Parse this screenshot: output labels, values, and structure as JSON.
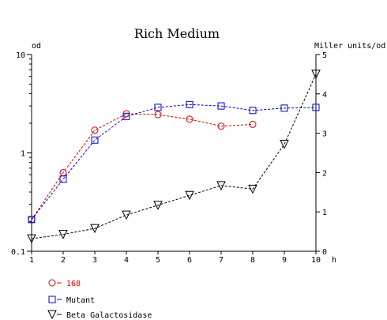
{
  "chart_data": {
    "type": "line",
    "title": "Rich Medium",
    "x": [
      1,
      2,
      3,
      4,
      5,
      6,
      7,
      8,
      9,
      10
    ],
    "x_ticks": [
      "1",
      "2",
      "3",
      "4",
      "5",
      "6",
      "7",
      "8",
      "9",
      "10"
    ],
    "xlabel": "h",
    "xlim": [
      1,
      10
    ],
    "ylabel_left": "od",
    "ylim_left": [
      0.1,
      10
    ],
    "yscale_left": "log",
    "y_ticks_left": [
      "0.1",
      "1",
      "10"
    ],
    "ylabel_right": "Miller units/od",
    "ylim_right": [
      0,
      5
    ],
    "y_ticks_right": [
      "0",
      "1",
      "2",
      "3",
      "4",
      "5"
    ],
    "grid": false,
    "legend_position": "bottom-left",
    "series": [
      {
        "name": "168",
        "axis": "left",
        "color": "#dd0000",
        "marker": "circle",
        "x": [
          1,
          2,
          3,
          4,
          5,
          6,
          7,
          8
        ],
        "values": [
          0.21,
          0.63,
          1.7,
          2.5,
          2.45,
          2.2,
          1.87,
          1.95
        ]
      },
      {
        "name": "Mutant",
        "axis": "left",
        "color": "#0000cc",
        "marker": "square",
        "x": [
          1,
          2,
          3,
          4,
          5,
          6,
          7,
          8,
          9,
          10
        ],
        "values": [
          0.21,
          0.54,
          1.35,
          2.35,
          2.9,
          3.1,
          3.0,
          2.7,
          2.85,
          2.9
        ]
      },
      {
        "name": "Beta Galactosidase",
        "axis": "right",
        "color": "#000000",
        "marker": "triangle-down",
        "x": [
          1,
          2,
          3,
          4,
          5,
          6,
          7,
          8,
          9,
          10
        ],
        "values": [
          0.32,
          0.43,
          0.58,
          0.92,
          1.17,
          1.42,
          1.67,
          1.58,
          2.72,
          4.5
        ]
      }
    ]
  }
}
